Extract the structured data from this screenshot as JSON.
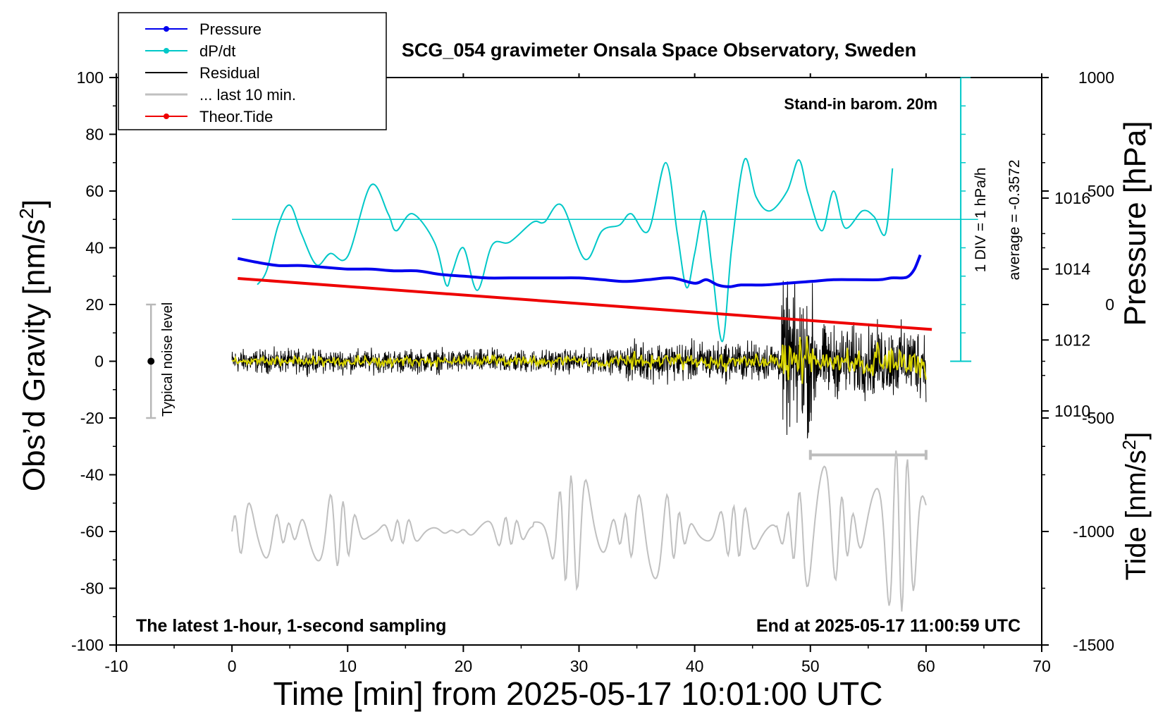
{
  "chart_data": {
    "type": "line",
    "title": "SCG_054 gravimeter Onsala Space Observatory, Sweden",
    "xlabel": "Time [min] from 2025-05-17 10:01:00 UTC",
    "ylabel_left": "Obs’d Gravity [nm/s",
    "ylabel_left_sup": "2",
    "ylabel_left_tail": "]",
    "ylabel_right_pressure": "Pressure [hPa]",
    "ylabel_right_tide": "Tide [nm/s",
    "ylabel_right_tide_sup": "2",
    "ylabel_right_tide_tail": "]",
    "xlim": [
      -10,
      70
    ],
    "ylim": [
      -100,
      100
    ],
    "x_ticks": [
      "-10",
      "0",
      "10",
      "20",
      "30",
      "40",
      "50",
      "60",
      "70"
    ],
    "y_ticks": [
      "-100",
      "-80",
      "-60",
      "-40",
      "-20",
      "0",
      "20",
      "40",
      "60",
      "80",
      "100"
    ],
    "pressure_axis": {
      "ticks": [
        "1010",
        "1012",
        "1014",
        "1016"
      ],
      "range": [
        1003.4,
        1019.4
      ]
    },
    "tide_axis": {
      "ticks": [
        "-1500",
        "-1000",
        "-500",
        "0",
        "500",
        "1000"
      ],
      "range": [
        -1500,
        1000
      ]
    },
    "grid": false,
    "legend_position": "top-left",
    "legend": [
      {
        "name": "Pressure",
        "color": "#0000ee",
        "marker": true
      },
      {
        "name": "dP/dt",
        "color": "#00c8c8",
        "marker": true
      },
      {
        "name": "Residual",
        "color": "#000000",
        "marker": false
      },
      {
        "name": "... last 10 min.",
        "color": "#c0c0c0",
        "marker": false
      },
      {
        "name": "Theor.Tide",
        "color": "#ee0000",
        "marker": true
      }
    ],
    "annotations": {
      "barometer": "Stand-in barom. 20m",
      "div_label": "1 DIV = 1 hPa/h",
      "average_label": "average = -0.3572",
      "noise_label": "Typical noise level",
      "bottom_left": "The latest 1-hour, 1-second sampling",
      "bottom_right": "End at 2025-05-17 11:00:59 UTC"
    },
    "noise_bar": {
      "x": -7,
      "y_range": [
        -20,
        20
      ]
    },
    "last10_bar": {
      "x_range": [
        50,
        60
      ],
      "y": -33
    },
    "dpdt_reference_y": 50,
    "series": [
      {
        "name": "Pressure",
        "color": "#0000ee",
        "unit": "hPa",
        "x": [
          0.5,
          2,
          4,
          6,
          8,
          10,
          12,
          14,
          16,
          18,
          20,
          22,
          24,
          26,
          28,
          30,
          32,
          34,
          36,
          38,
          40,
          41,
          42,
          43,
          44,
          46,
          48,
          50,
          52,
          54,
          56,
          57,
          58,
          58.5,
          59,
          59.5
        ],
        "values": [
          1014.3,
          1014.2,
          1014.1,
          1014.1,
          1014.05,
          1014.0,
          1014.0,
          1013.95,
          1013.95,
          1013.85,
          1013.8,
          1013.75,
          1013.75,
          1013.75,
          1013.75,
          1013.75,
          1013.7,
          1013.65,
          1013.7,
          1013.75,
          1013.6,
          1013.7,
          1013.55,
          1013.5,
          1013.55,
          1013.55,
          1013.6,
          1013.65,
          1013.7,
          1013.7,
          1013.7,
          1013.75,
          1013.75,
          1013.8,
          1014.0,
          1014.4
        ]
      },
      {
        "name": "dP/dt",
        "color": "#00c8c8",
        "unit": "gravity axis units",
        "x": [
          2.2,
          3,
          4,
          5,
          6,
          7.3,
          8.5,
          10,
          12,
          13.5,
          14.2,
          15.6,
          17.5,
          18.5,
          19,
          20,
          21.2,
          22.5,
          24,
          26,
          27,
          28.5,
          30.5,
          32,
          33.5,
          34.5,
          36,
          37.5,
          38.5,
          39.3,
          40,
          40.8,
          41.5,
          42.4,
          43.2,
          44.3,
          45.3,
          46.5,
          48,
          49,
          49.8,
          51,
          52,
          53,
          54.5,
          55.5,
          56.5,
          57.1
        ],
        "values": [
          27,
          32,
          48,
          55,
          45,
          34,
          38,
          37,
          62,
          52,
          46,
          52,
          42,
          27,
          31,
          40,
          25,
          41,
          42,
          49,
          49,
          55,
          36,
          46,
          48,
          52,
          46,
          70,
          45,
          26,
          38,
          53,
          33,
          7,
          40,
          71,
          58,
          53,
          60,
          71,
          59,
          46,
          60,
          47,
          53,
          51,
          45,
          68
        ]
      },
      {
        "name": "Theor.Tide",
        "color": "#ee0000",
        "unit": "nm/s2",
        "x": [
          0.5,
          60.5
        ],
        "values": [
          115,
          -110
        ]
      }
    ]
  }
}
